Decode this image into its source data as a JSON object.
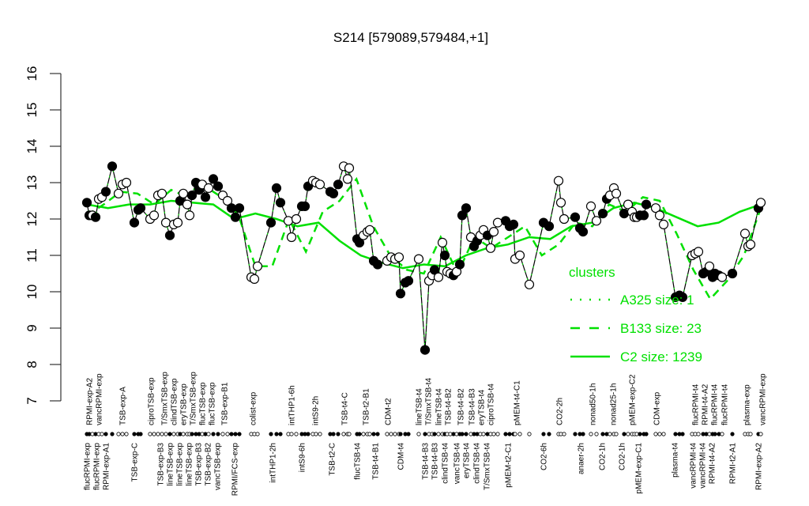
{
  "chart_data": {
    "type": "line",
    "title": "S214 [579089,579484,+1]",
    "xlabel": "",
    "ylabel": "",
    "ylim": [
      7,
      16
    ],
    "yticks": [
      7,
      8,
      9,
      10,
      11,
      12,
      13,
      14,
      15,
      16
    ],
    "grid": false,
    "colors": {
      "points": "#000000",
      "clusters": "#00e000"
    },
    "series": [
      {
        "values": [
          12.45,
          12.1,
          12.1,
          12.05,
          12.55,
          12.6,
          12.75,
          13.45,
          12.7,
          12.95,
          13.0,
          11.9,
          12.25,
          12.3,
          12.0,
          12.1,
          12.65,
          12.7,
          11.9,
          11.55,
          11.85,
          11.9,
          12.5,
          12.7,
          12.4,
          12.1,
          12.65,
          13.0,
          12.8,
          12.95,
          12.6,
          12.85,
          13.1,
          12.9,
          12.65,
          12.5,
          12.3,
          12.05,
          12.3,
          10.4,
          10.35,
          10.7,
          11.9,
          12.85,
          12.45,
          11.95,
          11.5,
          12.0,
          12.35,
          12.35,
          12.9,
          13.05,
          13.0,
          12.95,
          12.75,
          12.7,
          12.95,
          13.45,
          13.1,
          13.4,
          11.45,
          11.35,
          11.55,
          11.65,
          11.7,
          10.85,
          10.75,
          10.85,
          10.95,
          10.9,
          10.95,
          9.95,
          10.25,
          10.3,
          10.9,
          8.4,
          10.3,
          10.45,
          10.6,
          10.4,
          11.35,
          11.0,
          10.55,
          10.5,
          10.45,
          10.55,
          10.75,
          12.1,
          12.3,
          11.5,
          11.25,
          11.4,
          11.55,
          11.7,
          11.55,
          11.2,
          11.65,
          11.9,
          11.95,
          11.8,
          11.85,
          10.9,
          11.0,
          10.2,
          11.9,
          11.8,
          13.05,
          12.45,
          12.0,
          12.05,
          11.75,
          11.65,
          12.35,
          11.95,
          12.15,
          12.55,
          12.65,
          12.85,
          12.7,
          12.15,
          12.4,
          12.2,
          12.05,
          12.05,
          12.1,
          12.1,
          12.4,
          12.3,
          12.1,
          11.85,
          9.85,
          9.9,
          9.85,
          11.0,
          11.05,
          11.1,
          10.5,
          10.55,
          10.7,
          10.4,
          10.5,
          10.45,
          10.4,
          10.5,
          11.6,
          11.25,
          11.3,
          12.3,
          12.45
        ],
        "filled": [
          1,
          1,
          0,
          1,
          0,
          0,
          1,
          1,
          0,
          0,
          0,
          1,
          1,
          1,
          0,
          0,
          0,
          0,
          0,
          1,
          0,
          0,
          1,
          0,
          0,
          0,
          1,
          1,
          1,
          0,
          1,
          0,
          1,
          1,
          0,
          0,
          1,
          1,
          1,
          0,
          0,
          0,
          1,
          1,
          1,
          0,
          0,
          0,
          1,
          1,
          1,
          0,
          0,
          0,
          1,
          1,
          1,
          0,
          0,
          0,
          1,
          1,
          0,
          0,
          0,
          1,
          1,
          0,
          0,
          0,
          0,
          1,
          1,
          1,
          0,
          1,
          0,
          0,
          1,
          0,
          0,
          1,
          0,
          0,
          1,
          0,
          1,
          1,
          1,
          0,
          1,
          1,
          0,
          0,
          1,
          0,
          0,
          0,
          1,
          1,
          1,
          0,
          0,
          0,
          1,
          1,
          0,
          0,
          0,
          1,
          1,
          1,
          0,
          0,
          1,
          1,
          0,
          0,
          0,
          1,
          0,
          0,
          0,
          0,
          1,
          1,
          1,
          0,
          0,
          0,
          1,
          1,
          1,
          0,
          0,
          0,
          1,
          1,
          0,
          1,
          1,
          1,
          0,
          1,
          0,
          0,
          0,
          1,
          0
        ]
      }
    ],
    "clusters": [
      {
        "name": "A325 size: 1",
        "style": "dotted",
        "values": []
      },
      {
        "name": "B133 size: 23",
        "style": "dashed",
        "values": [
          12.1,
          12.4,
          12.75,
          12.7,
          12.4,
          12.8,
          12.6,
          12.9,
          12.6,
          12.1,
          10.7,
          10.7,
          12.0,
          11.1,
          12.2,
          12.5,
          13.1,
          11.8,
          11.0,
          10.6,
          10.5,
          11.5,
          10.5,
          11.5,
          11.2,
          11.5,
          11.8,
          11.0,
          11.3,
          11.9,
          11.8,
          12.4,
          12.2,
          12.6,
          12.5,
          11.6,
          10.6,
          9.8,
          10.3,
          11.0,
          12.3
        ]
      },
      {
        "name": "C2 size: 1239",
        "style": "solid",
        "values": [
          12.4,
          12.3,
          12.4,
          12.4,
          12.5,
          12.45,
          12.4,
          12.0,
          12.15,
          12.0,
          11.8,
          11.9,
          11.4,
          11.0,
          10.8,
          10.65,
          10.75,
          10.7,
          11.0,
          11.2,
          11.3,
          11.5,
          11.45,
          11.8,
          11.9,
          12.3,
          12.45,
          12.3,
          12.05,
          11.8,
          11.9,
          12.2,
          12.4
        ]
      }
    ],
    "legend": {
      "title": "clusters",
      "placement": "right"
    },
    "top_labels": [
      "RPMI-exp-A2",
      "vancRPMI-exp",
      "TSB-exp-A",
      "ciproTSB-exp",
      "T/SmxTSB-exp",
      "clindTSB-exp",
      "eryTSB-exp",
      "T/SmxTSB-exp",
      "flucTSB-exp",
      "flucTSB-exp",
      "TSB-exp-B1",
      "colist-exp",
      "intTHP1-6h",
      "intS9-2h",
      "TSB-t4-C",
      "TSB-t2-B1",
      "CDM-t2",
      "lineTSB-t4",
      "T/SmxTSB-t4",
      "lineTSB-t4",
      "TSB-t4-B2",
      "TSB-t4-B2",
      "TSB-t4-B3",
      "eryTSB-t4",
      "ciproTSB-t4",
      "pMEM-t4-C1",
      "CO2-2h",
      "nonad50-1h",
      "nonad25-1h",
      "pMEM-exp-C2",
      "CDM-exp",
      "flucRPMI-t4",
      "RPMI-t4-A2",
      "flucRPMI-t4",
      "flucRPMI-t4",
      "plasma-exp",
      "vancRPMI-exp"
    ],
    "bottom_labels": [
      "flucRPMI-exp",
      "flucRPMI-exp",
      "RPMI-exp-A1",
      "TSB-exp-C",
      "TSB-exp-B3",
      "lineTSB-exp",
      "lineTSB-exp",
      "lineTSB-exp",
      "TSB-exp-B3",
      "TSB-exp-B2",
      "vancTSB-exp",
      "RPMI/FCS-exp",
      "intTHP1-2h",
      "intS9-6h",
      "TSB-t2-C",
      "flucTSB-t4",
      "TSB-t4-B1",
      "CDM-t4",
      "TSB-t4-B3",
      "TSB-t4-B3",
      "clindTSB-t4",
      "vancTSB-t4",
      "eryTSB-t4",
      "clindTSB-t4",
      "T/SmxTSB-t4",
      "pMEM-t2-C1",
      "CO2-6h",
      "anaer-2h",
      "CO2-1h",
      "CO2-1h",
      "pMEM-exp-C1",
      "plasma-t4",
      "vancRPMI-t4",
      "vancRPMI-t4",
      "RPMI-t4-A2",
      "RPMI-t2-A1",
      "RPMI-exp-A2"
    ]
  }
}
